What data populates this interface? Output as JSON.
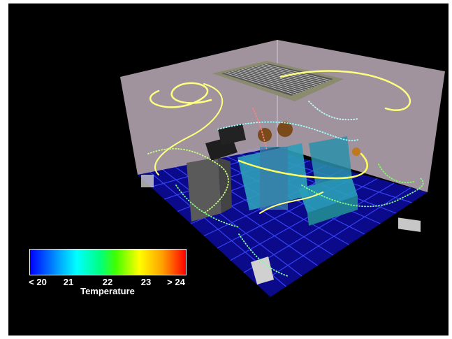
{
  "colorbar": {
    "title": "Temperature",
    "ticks": [
      "< 20",
      "21",
      "22",
      "23",
      "> 24"
    ],
    "colors": [
      "#0000ff",
      "#00ffff",
      "#00ff00",
      "#ffff00",
      "#ff0000"
    ]
  },
  "scene": {
    "background": "#000000",
    "wall_color": "#b6a7b3",
    "floor_color": "#0a0a8a",
    "grid_color": "#3a48ff",
    "streamline_color": "#ffff80"
  }
}
